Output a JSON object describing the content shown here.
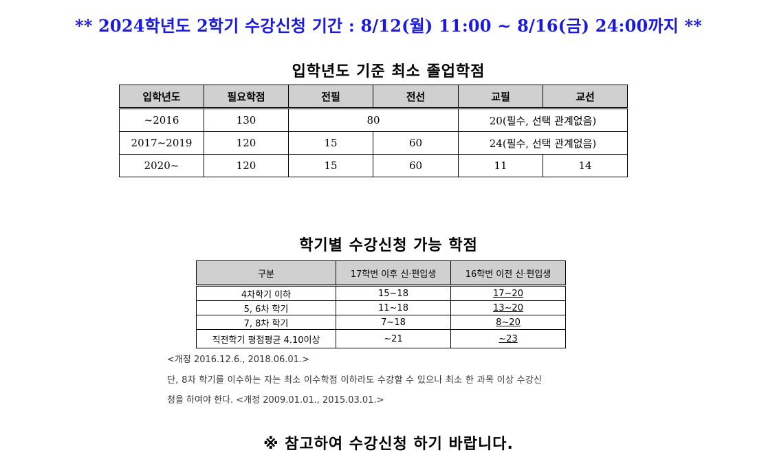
{
  "banner": "** 2024학년도 2학기 수강신청 기간 : 8/12(월) 11:00 ~ 8/16(금) 24:00까지 **",
  "table1": {
    "title": "입학년도 기준 최소 졸업학점",
    "headers": [
      "입학년도",
      "필요학점",
      "전필",
      "전선",
      "교필",
      "교선"
    ],
    "rows": [
      {
        "year": "~2016",
        "required": "130",
        "major": "80",
        "liberal": "20(필수, 선택 관계없음)"
      },
      {
        "year": "2017~2019",
        "required": "120",
        "major_req": "15",
        "major_elec": "60",
        "liberal": "24(필수, 선택 관계없음)"
      },
      {
        "year": "2020~",
        "required": "120",
        "major_req": "15",
        "major_elec": "60",
        "liberal_req": "11",
        "liberal_elec": "14"
      }
    ]
  },
  "table2": {
    "title": "학기별 수강신청 가능 학점",
    "headers": [
      "구분",
      "17학번 이후 신·편입생",
      "16학번 이전 신·편입생"
    ],
    "rows": [
      {
        "category": "4차학기 이하",
        "after17": "15~18",
        "before16": "17~20"
      },
      {
        "category": "5, 6차 학기",
        "after17": "11~18",
        "before16": "13~20"
      },
      {
        "category": "7, 8차 학기",
        "after17": "7~18",
        "before16": "8~20"
      },
      {
        "category": "직전학기 평점평균 4.10이상",
        "after17": "~21",
        "before16": "~23"
      }
    ]
  },
  "notes": [
    "<개정 2016.12.6., 2018.06.01.>",
    "단, 8차 학기를 이수하는 자는 최소 이수학점 이하라도 수강할 수 있으나 최소 한 과목 이상 수강신",
    "청을 하여야 한다. <개정 2009.01.01., 2015.03.01.>"
  ],
  "closing": "※ 참고하여 수강신청 하기 바랍니다."
}
